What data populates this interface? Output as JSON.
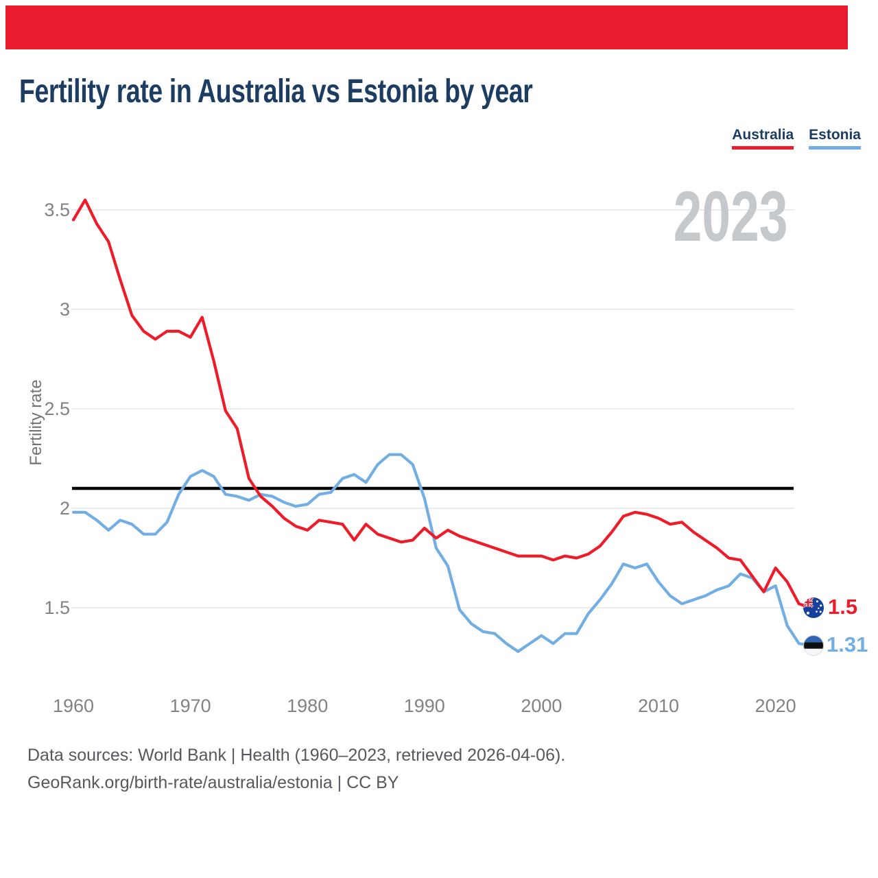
{
  "top_banner": {
    "color": "#e81c2e"
  },
  "header": {
    "title": "Fertility rate in Australia vs Estonia by year"
  },
  "legend": [
    {
      "label": "Australia",
      "color": "#ee1c29"
    },
    {
      "label": "Estonia",
      "color": "#72aee4"
    }
  ],
  "watermark": "2023",
  "chart_data": {
    "type": "line",
    "title": "Fertility rate in Australia vs Estonia by year",
    "ylabel": "Fertility rate",
    "xlabel": "",
    "grid": "horizontal",
    "legend_position": "top-right",
    "ylim": [
      1.18,
      3.62
    ],
    "xlim": [
      1960,
      2023
    ],
    "yticks": [
      1.5,
      2,
      2.5,
      3,
      3.5
    ],
    "xticks": [
      1960,
      1970,
      1980,
      1990,
      2000,
      2010,
      2020
    ],
    "reference_line": {
      "value": 2.1,
      "color": "#000000"
    },
    "years": [
      1960,
      1961,
      1962,
      1963,
      1964,
      1965,
      1966,
      1967,
      1968,
      1969,
      1970,
      1971,
      1972,
      1973,
      1974,
      1975,
      1976,
      1977,
      1978,
      1979,
      1980,
      1981,
      1982,
      1983,
      1984,
      1985,
      1986,
      1987,
      1988,
      1989,
      1990,
      1991,
      1992,
      1993,
      1994,
      1995,
      1996,
      1997,
      1998,
      1999,
      2000,
      2001,
      2002,
      2003,
      2004,
      2005,
      2006,
      2007,
      2008,
      2009,
      2010,
      2011,
      2012,
      2013,
      2014,
      2015,
      2016,
      2017,
      2018,
      2019,
      2020,
      2021,
      2022,
      2023
    ],
    "series": [
      {
        "name": "Australia",
        "color": "#ee1c29",
        "end_label": "1.5",
        "flag_icon": "australia-flag",
        "values": [
          3.45,
          3.55,
          3.43,
          3.34,
          3.15,
          2.97,
          2.89,
          2.85,
          2.89,
          2.89,
          2.86,
          2.96,
          2.74,
          2.49,
          2.4,
          2.15,
          2.06,
          2.01,
          1.95,
          1.91,
          1.89,
          1.94,
          1.93,
          1.92,
          1.84,
          1.92,
          1.87,
          1.85,
          1.83,
          1.84,
          1.9,
          1.85,
          1.89,
          1.86,
          1.84,
          1.82,
          1.8,
          1.78,
          1.76,
          1.76,
          1.76,
          1.74,
          1.76,
          1.75,
          1.77,
          1.81,
          1.88,
          1.96,
          1.98,
          1.97,
          1.95,
          1.92,
          1.93,
          1.88,
          1.84,
          1.8,
          1.75,
          1.74,
          1.66,
          1.58,
          1.7,
          1.63,
          1.52,
          1.5
        ]
      },
      {
        "name": "Estonia",
        "color": "#72aee4",
        "end_label": "1.31",
        "flag_icon": "estonia-flag",
        "values": [
          1.98,
          1.98,
          1.94,
          1.89,
          1.94,
          1.92,
          1.87,
          1.87,
          1.93,
          2.07,
          2.16,
          2.19,
          2.16,
          2.07,
          2.06,
          2.04,
          2.07,
          2.06,
          2.03,
          2.01,
          2.02,
          2.07,
          2.08,
          2.15,
          2.17,
          2.13,
          2.22,
          2.27,
          2.27,
          2.22,
          2.05,
          1.8,
          1.71,
          1.49,
          1.42,
          1.38,
          1.37,
          1.32,
          1.28,
          1.32,
          1.36,
          1.32,
          1.37,
          1.37,
          1.47,
          1.54,
          1.62,
          1.72,
          1.7,
          1.72,
          1.63,
          1.56,
          1.52,
          1.54,
          1.56,
          1.59,
          1.61,
          1.67,
          1.65,
          1.58,
          1.61,
          1.41,
          1.32,
          1.31
        ]
      }
    ]
  },
  "footer": {
    "line1": "Data sources: World Bank | Health (1960–2023, retrieved 2026-04-06).",
    "line2": "GeoRank.org/birth-rate/australia/estonia | CC BY"
  }
}
